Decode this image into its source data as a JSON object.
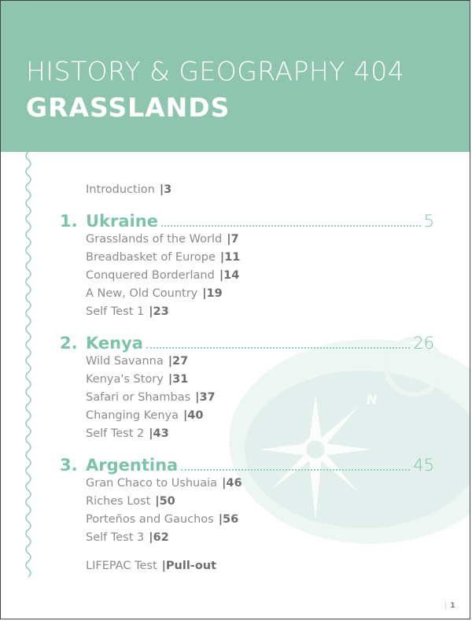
{
  "header": {
    "subject": "HISTORY & GEOGRAPHY 404",
    "title": "GRASSLANDS"
  },
  "colors": {
    "header_bg": "#8ec5af",
    "accent": "#7cc3a7",
    "body_text": "#8c8c8c"
  },
  "introduction": {
    "label": "Introduction",
    "page": "|3"
  },
  "chapters": [
    {
      "number": "1.",
      "title": "Ukraine",
      "page": "5",
      "sections": [
        {
          "label": "Grasslands of the World",
          "page": "|7"
        },
        {
          "label": "Breadbasket of Europe",
          "page": "|11"
        },
        {
          "label": "Conquered Borderland",
          "page": "|14"
        },
        {
          "label": "A New, Old Country",
          "page": "|19"
        },
        {
          "label": "Self Test 1",
          "page": "|23"
        }
      ]
    },
    {
      "number": "2.",
      "title": "Kenya",
      "page": "26",
      "sections": [
        {
          "label": "Wild Savanna",
          "page": "|27"
        },
        {
          "label": "Kenya's Story",
          "page": "|31"
        },
        {
          "label": "Safari or Shambas",
          "page": "|37"
        },
        {
          "label": "Changing Kenya",
          "page": "|40"
        },
        {
          "label": "Self Test 2",
          "page": "|43"
        }
      ]
    },
    {
      "number": "3.",
      "title": "Argentina",
      "page": "45",
      "sections": [
        {
          "label": "Gran Chaco to Ushuaia",
          "page": "|46"
        },
        {
          "label": "Riches Lost",
          "page": "|50"
        },
        {
          "label": "Porteños and Gauchos",
          "page": "|56"
        },
        {
          "label": "Self Test 3",
          "page": "|62"
        }
      ]
    }
  ],
  "final_test": {
    "label": "LIFEPAC Test",
    "page": "|Pull-out"
  },
  "folio": {
    "separator": "|",
    "page": "1"
  },
  "decor": {
    "background_icon": "compass-icon",
    "compass_letter": "N"
  }
}
